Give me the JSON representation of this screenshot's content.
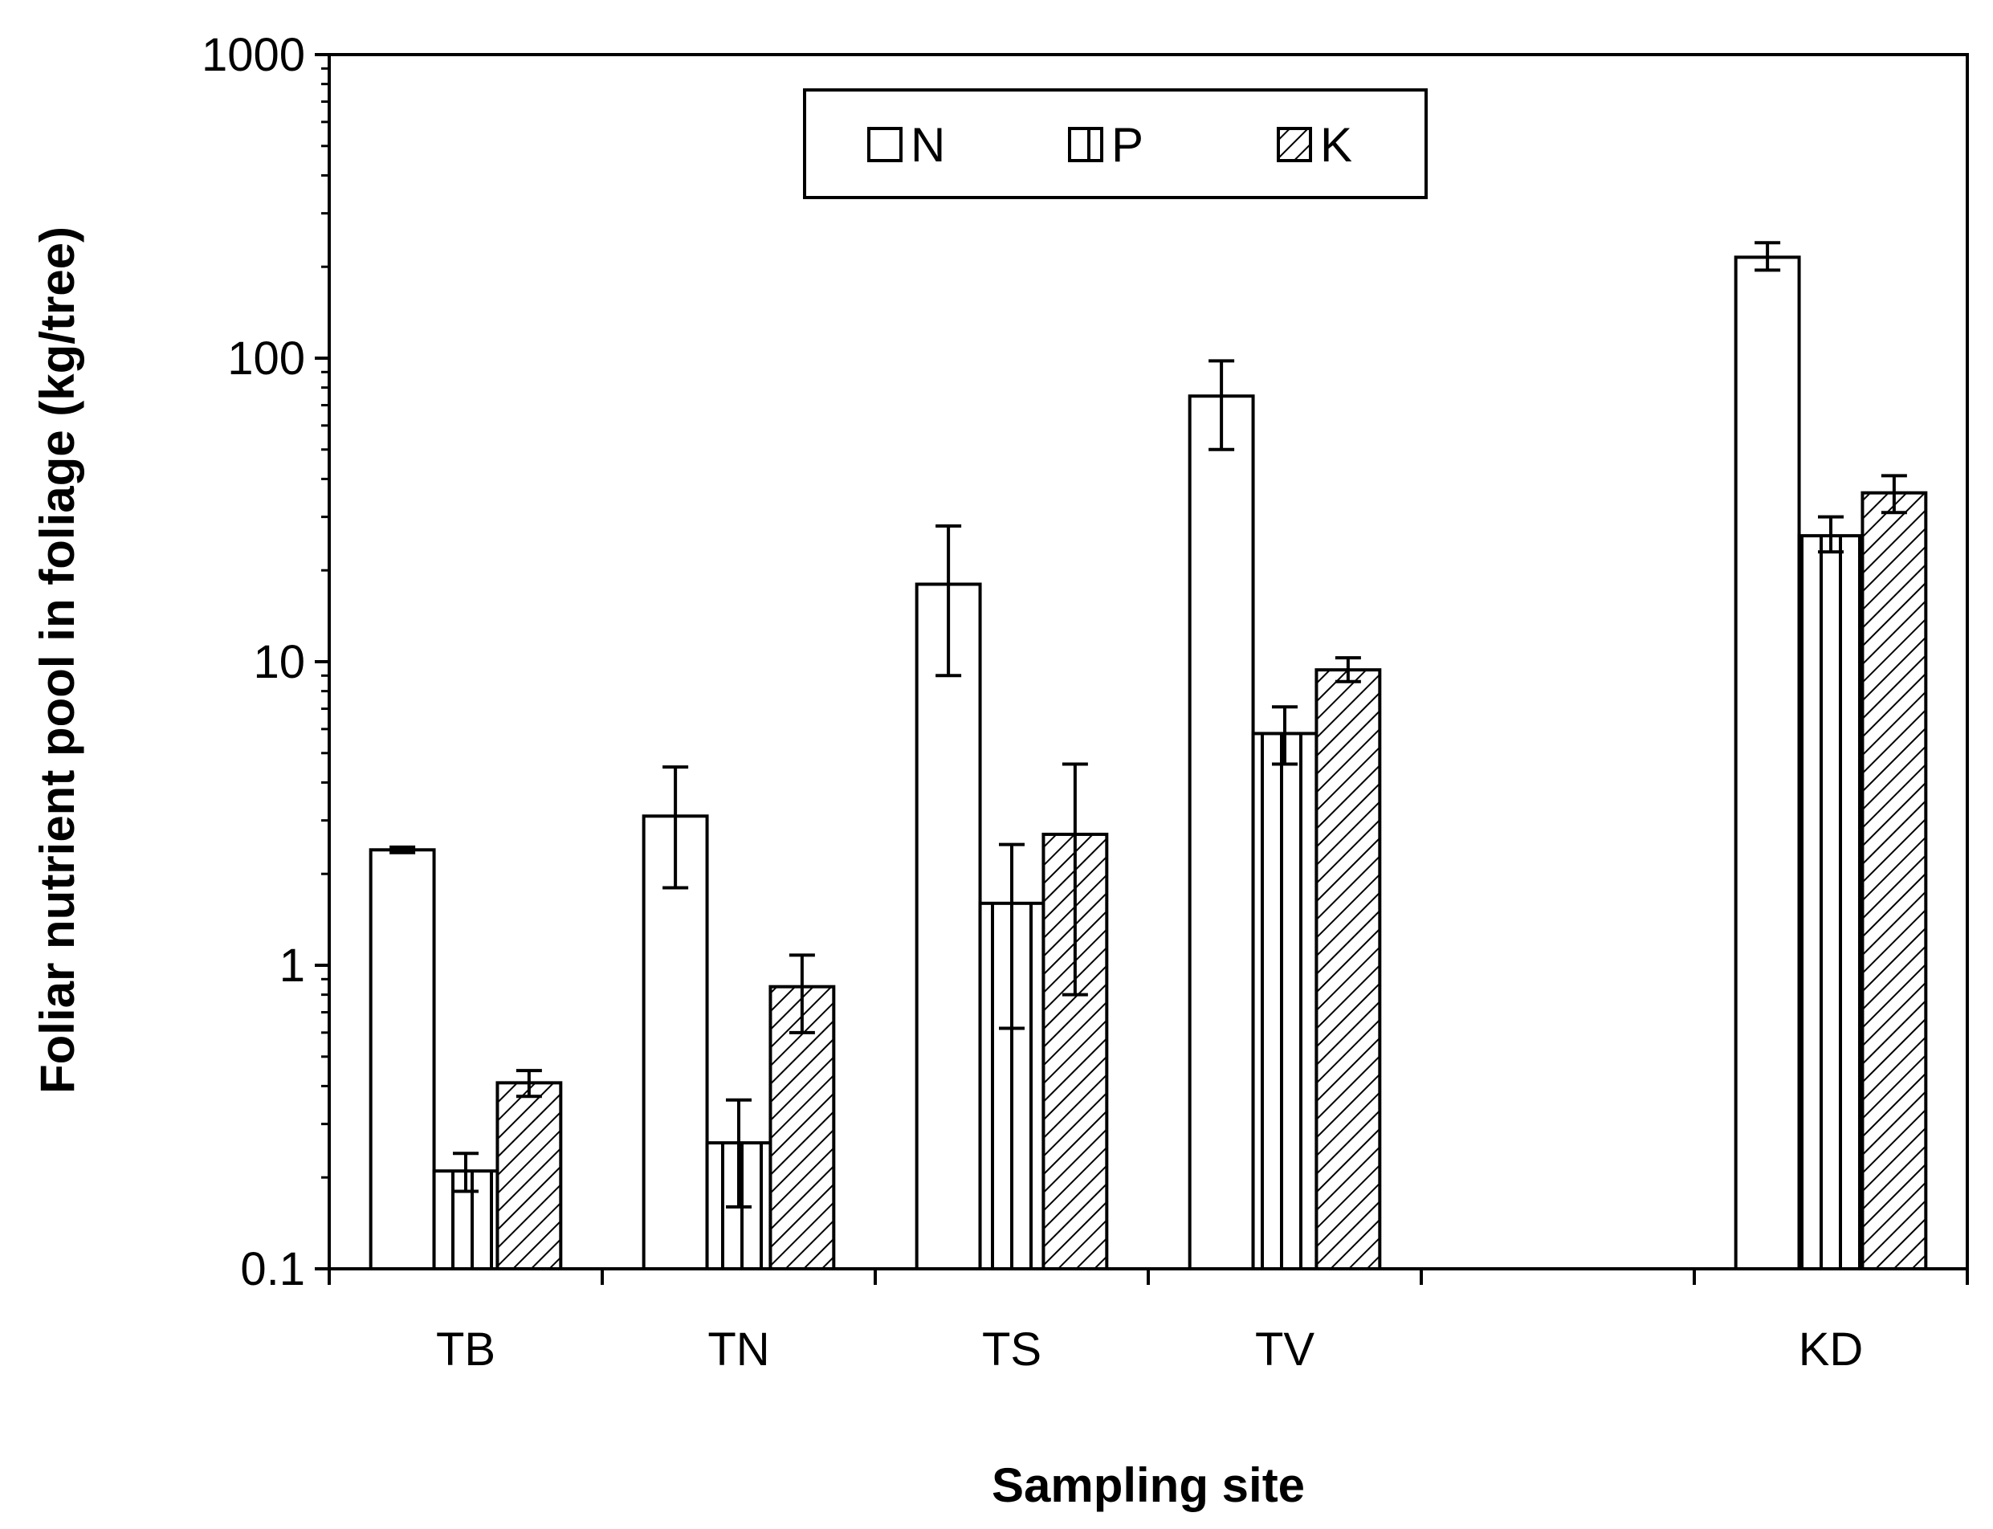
{
  "chart_data": {
    "type": "bar",
    "title": "",
    "xlabel": "Sampling site",
    "ylabel": "Foliar nutrient pool in foliage (kg/tree)",
    "yscale": "log",
    "ylim": [
      0.1,
      1000
    ],
    "yticks": [
      "0.1",
      "1",
      "10",
      "100",
      "1000"
    ],
    "categories": [
      "TB",
      "TN",
      "TS",
      "TV",
      "",
      "KD"
    ],
    "legend_position": "top-center",
    "series": [
      {
        "name": "N",
        "pattern": "open",
        "values": [
          2.4,
          3.1,
          18,
          75,
          null,
          215
        ],
        "err_low": [
          2.35,
          1.8,
          9,
          50,
          null,
          195
        ],
        "err_high": [
          2.45,
          4.5,
          28,
          98,
          null,
          240
        ]
      },
      {
        "name": "P",
        "pattern": "vertical-lines",
        "values": [
          0.21,
          0.26,
          1.6,
          5.8,
          null,
          26
        ],
        "err_low": [
          0.18,
          0.16,
          0.62,
          4.6,
          null,
          23
        ],
        "err_high": [
          0.24,
          0.36,
          2.5,
          7.1,
          null,
          30
        ]
      },
      {
        "name": "K",
        "pattern": "diagonal-hatch",
        "values": [
          0.41,
          0.85,
          2.7,
          9.4,
          null,
          36
        ],
        "err_low": [
          0.37,
          0.6,
          0.8,
          8.6,
          null,
          31
        ],
        "err_high": [
          0.45,
          1.08,
          4.6,
          10.3,
          null,
          41
        ]
      }
    ]
  }
}
